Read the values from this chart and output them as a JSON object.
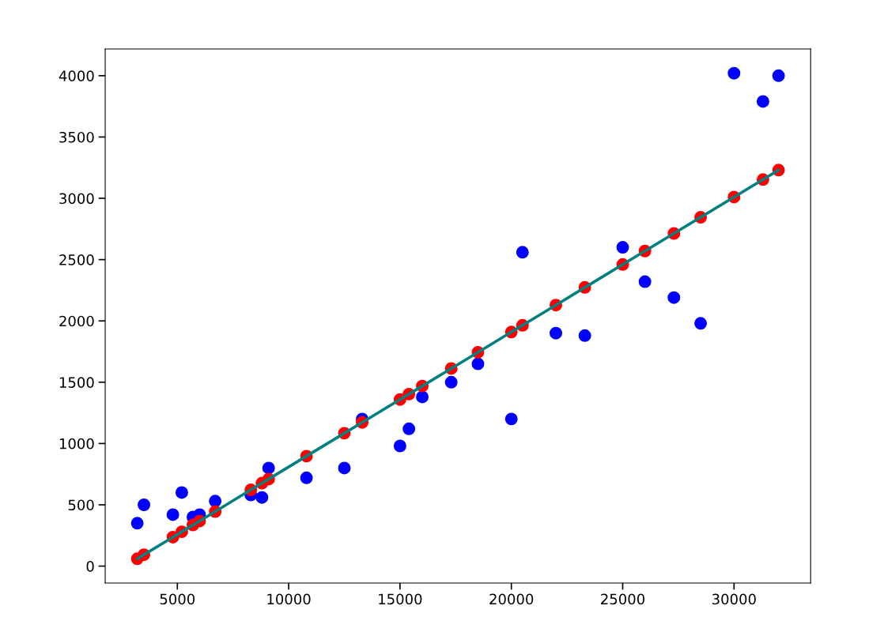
{
  "chart_data": {
    "type": "scatter",
    "xlim": [
      1760,
      33440
    ],
    "ylim": [
      -138,
      4218
    ],
    "xticks": [
      5000,
      10000,
      15000,
      20000,
      25000,
      30000
    ],
    "yticks": [
      0,
      500,
      1000,
      1500,
      2000,
      2500,
      3000,
      3500,
      4000
    ],
    "marker": "circle",
    "grid": false,
    "x": [
      3200,
      3500,
      4800,
      5200,
      5700,
      6000,
      6700,
      8300,
      8800,
      9100,
      10800,
      12500,
      13300,
      15000,
      15400,
      16000,
      17300,
      18500,
      20000,
      20500,
      22000,
      23300,
      25000,
      26000,
      27300,
      28500,
      30000,
      31300,
      32000
    ],
    "series": [
      {
        "color": "#0000ff",
        "values": [
          350,
          500,
          420,
          600,
          400,
          420,
          530,
          580,
          560,
          800,
          720,
          800,
          1200,
          980,
          1120,
          1380,
          1500,
          1650,
          1200,
          2560,
          1900,
          1880,
          2600,
          2320,
          2190,
          1980,
          4020,
          3790,
          4000
        ]
      },
      {
        "color": "#ff0000",
        "values": [
          60,
          93,
          236,
          280,
          335,
          368,
          445,
          622,
          677,
          710,
          897,
          1084,
          1172,
          1359,
          1403,
          1469,
          1612,
          1744,
          1909,
          1964,
          2129,
          2273,
          2460,
          2570,
          2713,
          2845,
          3010,
          3153,
          3230
        ]
      },
      {
        "type": "line",
        "color": "#008080",
        "line_style": "solid",
        "marker": "none",
        "values": [
          60,
          93,
          236,
          280,
          335,
          368,
          445,
          622,
          677,
          710,
          897,
          1084,
          1172,
          1359,
          1403,
          1469,
          1612,
          1744,
          1909,
          1964,
          2129,
          2273,
          2460,
          2570,
          2713,
          2845,
          3010,
          3153,
          3230
        ]
      }
    ]
  }
}
